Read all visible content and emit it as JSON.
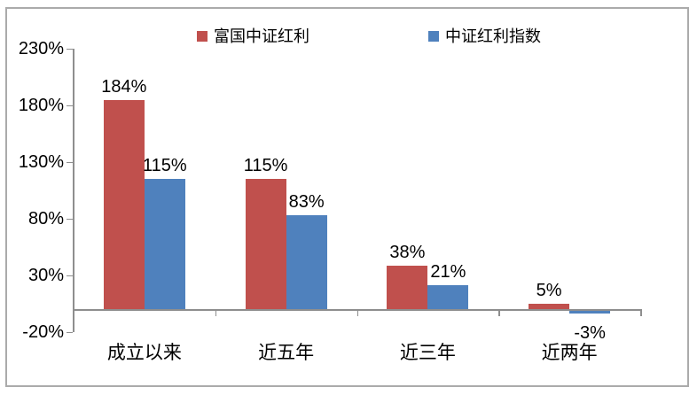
{
  "chart_data": {
    "type": "bar",
    "title": "",
    "categories": [
      "成立以来",
      "近五年",
      "近三年",
      "近两年"
    ],
    "series": [
      {
        "name": "富国中证红利",
        "color": "#c0504d",
        "values": [
          184,
          115,
          38,
          5
        ]
      },
      {
        "name": "中证红利指数",
        "color": "#4f81bd",
        "values": [
          115,
          83,
          21,
          -3
        ]
      }
    ],
    "data_labels": [
      [
        "184%",
        "115%"
      ],
      [
        "115%",
        "83%"
      ],
      [
        "38%",
        "21%"
      ],
      [
        "5%",
        "-3%"
      ]
    ],
    "y_ticks": [
      "230%",
      "180%",
      "130%",
      "80%",
      "30%",
      "-20%"
    ],
    "y_tick_values": [
      230,
      180,
      130,
      80,
      30,
      -20
    ],
    "ylim": [
      -20,
      230
    ],
    "unit": "%",
    "grid": false,
    "legend_position": "top",
    "colors": {
      "axis": "#8e8e8e",
      "frame_border": "#ababab",
      "text": "#000000",
      "background": "#ffffff"
    }
  }
}
